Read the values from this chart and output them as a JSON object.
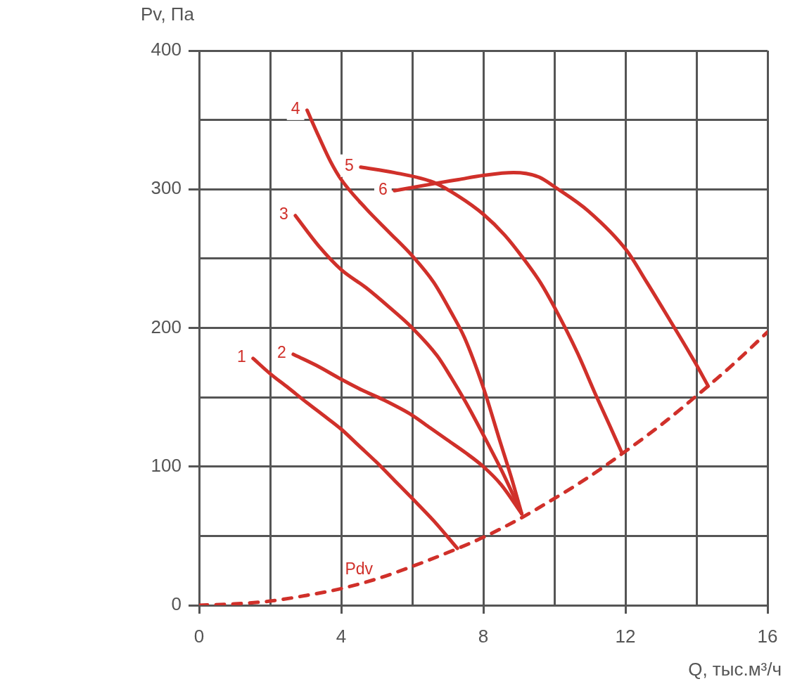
{
  "chart_data": {
    "type": "line",
    "xlabel": "Q, тыс.м³/ч",
    "ylabel": "Pv, Па",
    "xlim": [
      0,
      16
    ],
    "xticks": [
      0,
      {
        "value": 2,
        "label": null
      },
      4,
      {
        "value": 6,
        "label": null
      },
      8,
      {
        "value": 10,
        "label": null
      },
      12,
      {
        "value": 14,
        "label": null
      },
      16
    ],
    "ylim": [
      0,
      400
    ],
    "yticks": [
      0,
      {
        "value": 50,
        "label": null
      },
      100,
      {
        "value": 150,
        "label": null
      },
      200,
      {
        "value": 250,
        "label": null
      },
      300,
      {
        "value": 350,
        "label": null
      },
      400
    ],
    "grid": true,
    "legend": false,
    "marker": "none",
    "line_style": "solid",
    "series": [
      {
        "name": "1",
        "color": "#d0302a",
        "x": [
          1.52,
          2.0,
          2.5,
          3.04,
          3.5,
          4.0,
          4.5,
          5.0,
          5.5,
          6.0,
          6.6,
          7.27
        ],
        "values": [
          178,
          167,
          157,
          146,
          137,
          127,
          115,
          103,
          90,
          77,
          61,
          41
        ]
      },
      {
        "name": "2",
        "color": "#d0302a",
        "x": [
          2.65,
          3.3,
          4.0,
          4.6,
          5.2,
          6.0,
          6.5,
          7.0,
          7.5,
          8.0,
          8.5,
          9.08
        ],
        "values": [
          181,
          173,
          163,
          155,
          148,
          137,
          128,
          119,
          110,
          100,
          87,
          66
        ]
      },
      {
        "name": "3",
        "color": "#d0302a",
        "x": [
          2.71,
          3.37,
          4.0,
          4.7,
          5.35,
          6.0,
          6.7,
          7.1,
          7.47,
          7.75,
          8.12,
          8.5,
          8.85,
          9.08
        ],
        "values": [
          281,
          259,
          242,
          229,
          215,
          200,
          180,
          164,
          148,
          135,
          117,
          98,
          79,
          66
        ]
      },
      {
        "name": "4",
        "color": "#d0302a",
        "x": [
          3.04,
          3.37,
          3.7,
          4.0,
          4.7,
          5.35,
          6.0,
          6.6,
          7.1,
          7.47,
          8.0,
          8.46,
          8.79,
          9.08
        ],
        "values": [
          357,
          338,
          320,
          307,
          286,
          269,
          252,
          233,
          211,
          193,
          157,
          119,
          92,
          66
        ]
      },
      {
        "name": "5",
        "color": "#d0302a",
        "x": [
          4.55,
          5.5,
          6.6,
          7.3,
          8.0,
          8.6,
          9.13,
          9.6,
          10.0,
          10.65,
          11.16,
          11.55,
          11.9
        ],
        "values": [
          316,
          312,
          305,
          295,
          282,
          267,
          250,
          233,
          215,
          182,
          152,
          130,
          110
        ]
      },
      {
        "name": "6",
        "color": "#d0302a",
        "x": [
          5.5,
          6.6,
          7.3,
          8.0,
          8.85,
          9.55,
          10.05,
          10.97,
          12.03,
          12.6,
          13.1,
          13.94,
          14.33
        ],
        "values": [
          299,
          304,
          307,
          310,
          312,
          309,
          301,
          284,
          256,
          233,
          212,
          176,
          158
        ]
      },
      {
        "name": "Pdv",
        "color": "#d0302a",
        "line_style": "dashed",
        "x": [
          0,
          1,
          2,
          3,
          4,
          5,
          6,
          7,
          8,
          9,
          10,
          11,
          12,
          13,
          14,
          15,
          16
        ],
        "values": [
          0,
          1,
          3,
          7,
          12,
          19,
          28,
          38,
          49,
          62,
          77,
          93,
          111,
          130,
          151,
          173,
          197
        ]
      }
    ]
  }
}
